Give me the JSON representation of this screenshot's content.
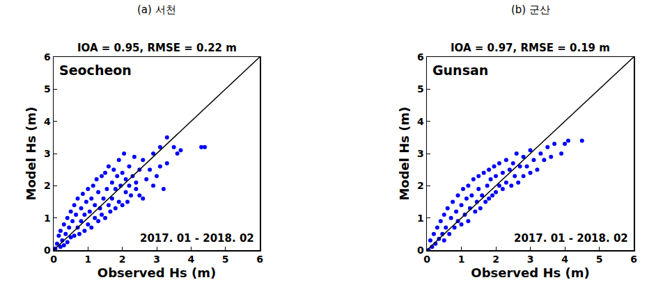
{
  "chart_data": [
    {
      "type": "scatter",
      "title": "(a) 서천",
      "subtitle": "IOA = 0.95, RMSE = 0.22 m",
      "annotations": [
        "Seocheon",
        "2017. 01 - 2018. 02"
      ],
      "x_label": "Observed Hs (m)",
      "y_label": "Model Hs (m)",
      "xlim": [
        0,
        6
      ],
      "ylim": [
        0,
        6
      ],
      "xticks": [
        0,
        1,
        2,
        3,
        4,
        5,
        6
      ],
      "yticks": [
        0,
        1,
        2,
        3,
        4,
        5,
        6
      ],
      "grid": false,
      "series": [
        {
          "type": "scatter",
          "color": "#0000ff",
          "marker": "circle",
          "x": [
            0.05,
            0.1,
            0.15,
            0.2,
            0.2,
            0.25,
            0.3,
            0.3,
            0.35,
            0.4,
            0.4,
            0.45,
            0.5,
            0.5,
            0.55,
            0.6,
            0.6,
            0.65,
            0.7,
            0.7,
            0.75,
            0.8,
            0.8,
            0.85,
            0.9,
            0.9,
            0.95,
            1.0,
            1.0,
            1.05,
            1.1,
            1.1,
            1.15,
            1.2,
            1.2,
            1.25,
            1.3,
            1.3,
            1.35,
            1.4,
            1.4,
            1.45,
            1.5,
            1.5,
            1.55,
            1.6,
            1.6,
            1.65,
            1.7,
            1.7,
            1.75,
            1.8,
            1.8,
            1.85,
            1.9,
            1.9,
            1.95,
            2.0,
            2.0,
            2.05,
            2.1,
            2.1,
            2.15,
            2.2,
            2.2,
            2.25,
            2.3,
            2.35,
            2.4,
            2.4,
            2.5,
            2.5,
            2.6,
            2.6,
            2.7,
            2.8,
            2.9,
            2.9,
            3.0,
            3.1,
            3.1,
            3.2,
            3.3,
            3.3,
            3.5,
            3.6,
            3.7,
            4.3,
            4.4
          ],
          "values": [
            0.05,
            0.2,
            0.45,
            0.1,
            0.6,
            0.3,
            0.8,
            0.15,
            0.5,
            1.0,
            0.25,
            0.7,
            1.2,
            0.4,
            0.9,
            1.4,
            0.45,
            1.1,
            0.7,
            1.6,
            0.5,
            1.3,
            0.9,
            1.75,
            0.6,
            1.1,
            1.5,
            0.8,
            1.9,
            1.2,
            0.7,
            1.6,
            2.0,
            1.0,
            1.4,
            2.2,
            0.9,
            1.8,
            1.3,
            2.3,
            1.1,
            1.6,
            2.4,
            1.0,
            1.9,
            1.4,
            2.6,
            1.2,
            2.1,
            1.6,
            2.5,
            1.3,
            1.9,
            2.3,
            1.5,
            2.8,
            2.0,
            1.4,
            2.4,
            3.0,
            1.8,
            2.2,
            1.5,
            2.6,
            2.0,
            1.7,
            2.3,
            2.9,
            1.9,
            2.1,
            2.5,
            1.7,
            2.8,
            1.6,
            2.2,
            2.5,
            2.0,
            3.0,
            2.3,
            2.6,
            3.2,
            1.9,
            3.5,
            2.7,
            3.2,
            3.0,
            3.1,
            3.2,
            3.2
          ]
        },
        {
          "type": "line",
          "color": "#000000",
          "line_style": "solid",
          "x": [
            0,
            6
          ],
          "values": [
            0,
            6
          ]
        }
      ]
    },
    {
      "type": "scatter",
      "title": "(b) 군산",
      "subtitle": "IOA = 0.97, RMSE = 0.19 m",
      "annotations": [
        "Gunsan",
        "2017. 01 - 2018. 02"
      ],
      "x_label": "Observed Hs (m)",
      "y_label": "Model Hs (m)",
      "xlim": [
        0,
        6
      ],
      "ylim": [
        0,
        6
      ],
      "xticks": [
        0,
        1,
        2,
        3,
        4,
        5,
        6
      ],
      "yticks": [
        0,
        1,
        2,
        3,
        4,
        5,
        6
      ],
      "grid": false,
      "series": [
        {
          "type": "scatter",
          "color": "#0000ff",
          "marker": "circle",
          "x": [
            0.05,
            0.1,
            0.15,
            0.2,
            0.25,
            0.3,
            0.35,
            0.4,
            0.45,
            0.5,
            0.5,
            0.55,
            0.6,
            0.65,
            0.7,
            0.75,
            0.8,
            0.85,
            0.9,
            0.9,
            1.0,
            1.0,
            1.05,
            1.1,
            1.15,
            1.2,
            1.2,
            1.25,
            1.3,
            1.35,
            1.4,
            1.45,
            1.5,
            1.5,
            1.55,
            1.6,
            1.65,
            1.7,
            1.75,
            1.8,
            1.8,
            1.85,
            1.9,
            1.95,
            2.0,
            2.0,
            2.1,
            2.1,
            2.2,
            2.2,
            2.3,
            2.3,
            2.4,
            2.45,
            2.5,
            2.55,
            2.6,
            2.65,
            2.7,
            2.8,
            2.8,
            2.9,
            3.0,
            3.0,
            3.1,
            3.2,
            3.3,
            3.4,
            3.5,
            3.6,
            3.7,
            3.9,
            4.0,
            4.1,
            4.5
          ],
          "values": [
            0.0,
            0.3,
            0.1,
            0.5,
            0.2,
            0.7,
            0.35,
            0.9,
            0.5,
            1.1,
            0.3,
            0.7,
            1.3,
            0.5,
            1.0,
            1.5,
            0.7,
            1.2,
            1.7,
            0.9,
            1.4,
            0.8,
            1.9,
            1.1,
            1.6,
            0.9,
            2.0,
            1.3,
            1.7,
            2.2,
            1.2,
            1.5,
            2.3,
            1.9,
            1.3,
            1.7,
            2.4,
            1.5,
            2.0,
            2.5,
            1.6,
            2.2,
            1.7,
            2.6,
            1.8,
            2.3,
            2.7,
            2.0,
            1.9,
            2.4,
            2.8,
            2.1,
            2.5,
            2.0,
            2.7,
            2.3,
            3.0,
            2.1,
            2.6,
            2.9,
            2.3,
            2.6,
            3.1,
            2.4,
            2.8,
            2.5,
            3.0,
            2.8,
            3.2,
            2.9,
            3.3,
            3.0,
            3.3,
            3.4,
            3.4
          ]
        },
        {
          "type": "line",
          "color": "#000000",
          "line_style": "solid",
          "x": [
            0,
            6
          ],
          "values": [
            0,
            6
          ]
        }
      ]
    }
  ]
}
